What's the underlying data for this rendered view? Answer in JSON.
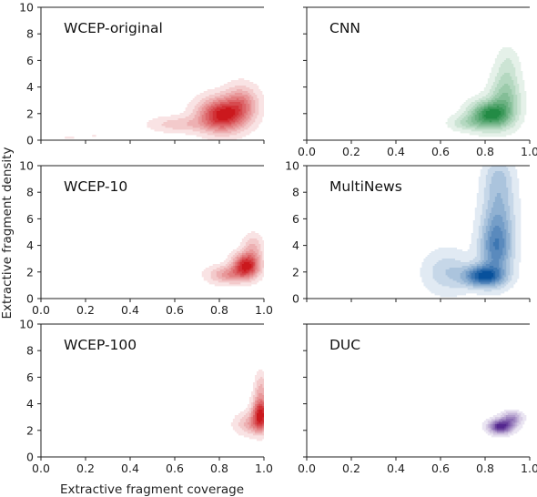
{
  "chart_data": {
    "type": "kde-contour-grid",
    "xlabel": "Extractive fragment coverage",
    "ylabel": "Extractive fragment density",
    "xlim": [
      0.0,
      1.0
    ],
    "ylim": [
      0,
      10
    ],
    "xticks": [
      "0.0",
      "0.2",
      "0.4",
      "0.6",
      "0.8",
      "1.0"
    ],
    "yticks": [
      "0",
      "2",
      "4",
      "6",
      "8",
      "10"
    ],
    "panels": [
      {
        "title": "WCEP-original",
        "color": "#cb181d",
        "x_ticks_labeled": false,
        "y_ticks_labeled": true,
        "blobs": [
          {
            "cx": 0.81,
            "cy": 1.9,
            "sx": 0.07,
            "sy": 0.85,
            "w": 1.0
          },
          {
            "cx": 0.9,
            "cy": 2.8,
            "sx": 0.05,
            "sy": 0.9,
            "w": 0.45
          },
          {
            "cx": 0.62,
            "cy": 1.2,
            "sx": 0.09,
            "sy": 0.4,
            "w": 0.25
          },
          {
            "cx": 0.13,
            "cy": 0.25,
            "sx": 0.06,
            "sy": 0.18,
            "w": 0.07
          },
          {
            "cx": 0.24,
            "cy": 0.3,
            "sx": 0.02,
            "sy": 0.15,
            "w": 0.06
          }
        ]
      },
      {
        "title": "CNN",
        "color": "#238b45",
        "x_ticks_labeled": true,
        "y_ticks_labeled": false,
        "blobs": [
          {
            "cx": 0.82,
            "cy": 1.9,
            "sx": 0.06,
            "sy": 0.7,
            "w": 1.0
          },
          {
            "cx": 0.89,
            "cy": 3.2,
            "sx": 0.045,
            "sy": 1.2,
            "w": 0.5
          },
          {
            "cx": 0.9,
            "cy": 5.6,
            "sx": 0.035,
            "sy": 1.0,
            "w": 0.18
          },
          {
            "cx": 0.71,
            "cy": 1.3,
            "sx": 0.05,
            "sy": 0.4,
            "w": 0.25
          }
        ]
      },
      {
        "title": "WCEP-10",
        "color": "#cb181d",
        "x_ticks_labeled": true,
        "y_ticks_labeled": true,
        "blobs": [
          {
            "cx": 0.92,
            "cy": 2.5,
            "sx": 0.04,
            "sy": 0.6,
            "w": 1.0
          },
          {
            "cx": 0.84,
            "cy": 1.8,
            "sx": 0.06,
            "sy": 0.45,
            "w": 0.45
          },
          {
            "cx": 0.95,
            "cy": 3.8,
            "sx": 0.03,
            "sy": 0.7,
            "w": 0.3
          }
        ]
      },
      {
        "title": "MultiNews",
        "color": "#08519c",
        "x_ticks_labeled": false,
        "y_ticks_labeled": true,
        "blobs": [
          {
            "cx": 0.79,
            "cy": 1.7,
            "sx": 0.06,
            "sy": 0.55,
            "w": 1.0
          },
          {
            "cx": 0.85,
            "cy": 3.8,
            "sx": 0.05,
            "sy": 1.5,
            "w": 0.75
          },
          {
            "cx": 0.86,
            "cy": 6.8,
            "sx": 0.05,
            "sy": 1.6,
            "w": 0.4
          },
          {
            "cx": 0.63,
            "cy": 2.0,
            "sx": 0.07,
            "sy": 1.1,
            "w": 0.3
          },
          {
            "cx": 0.86,
            "cy": 9.2,
            "sx": 0.045,
            "sy": 1.0,
            "w": 0.25
          }
        ]
      },
      {
        "title": "WCEP-100",
        "color": "#cb181d",
        "x_ticks_labeled": true,
        "y_ticks_labeled": true,
        "blobs": [
          {
            "cx": 0.985,
            "cy": 3.3,
            "sx": 0.025,
            "sy": 0.8,
            "w": 1.0
          },
          {
            "cx": 0.95,
            "cy": 2.5,
            "sx": 0.05,
            "sy": 0.55,
            "w": 0.4
          },
          {
            "cx": 0.985,
            "cy": 5.2,
            "sx": 0.018,
            "sy": 0.8,
            "w": 0.3
          }
        ]
      },
      {
        "title": "DUC",
        "color": "#54278f",
        "x_ticks_labeled": true,
        "y_ticks_labeled": false,
        "blobs": [
          {
            "cx": 0.87,
            "cy": 2.3,
            "sx": 0.035,
            "sy": 0.35,
            "w": 1.0
          },
          {
            "cx": 0.92,
            "cy": 2.9,
            "sx": 0.03,
            "sy": 0.35,
            "w": 0.5
          }
        ]
      }
    ]
  }
}
